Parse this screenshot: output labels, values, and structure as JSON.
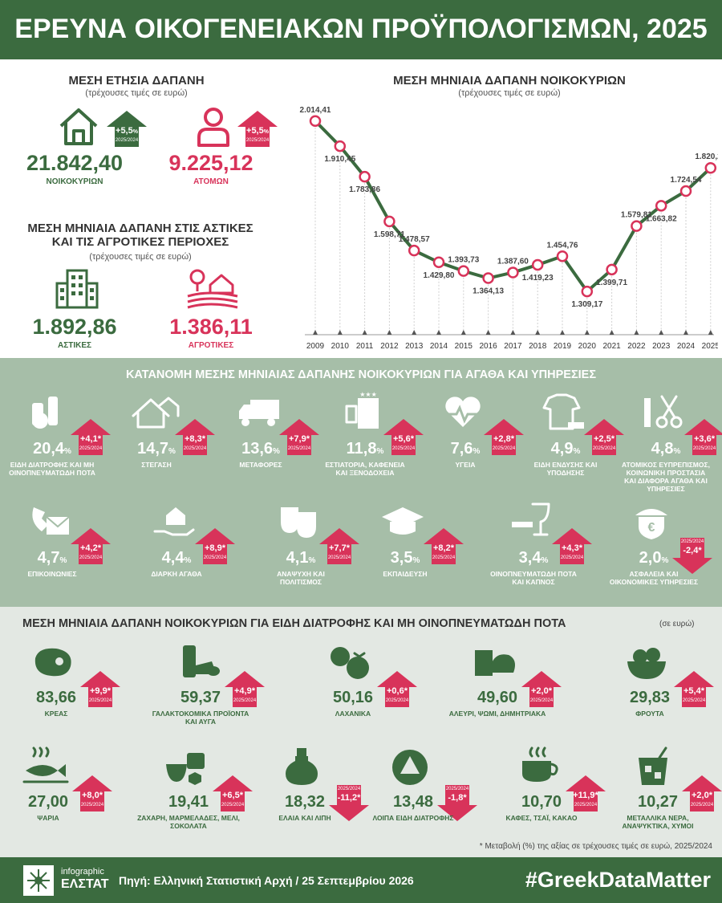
{
  "header": {
    "title": "ΕΡΕΥΝΑ ΟΙΚΟΓΕΝΕΙΑΚΩΝ ΠΡΟΫΠΟΛΟΓΙΣΜΩΝ, 2025"
  },
  "annual": {
    "title": "ΜΕΣΗ ΕΤΗΣΙΑ ΔΑΠΑΝΗ",
    "subtitle": "(τρέχουσες τιμές σε ευρώ)",
    "household": {
      "value": "21.842,40",
      "label": "ΝΟΙΚΟΚΥΡΙΩΝ",
      "change": "+5,5",
      "unit": "%",
      "period": "2025/2024"
    },
    "person": {
      "value": "9.225,12",
      "label": "ΑΤΟΜΩΝ",
      "change": "+5,5",
      "unit": "%",
      "period": "2025/2024"
    }
  },
  "areas": {
    "title1": "ΜΕΣΗ ΜΗΝΙΑΙΑ ΔΑΠΑΝΗ ΣΤΙΣ ΑΣΤΙΚΕΣ",
    "title2": "ΚΑΙ ΤΙΣ ΑΓΡΟΤΙΚΕΣ ΠΕΡΙΟΧΕΣ",
    "subtitle": "(τρέχουσες τιμές σε ευρώ)",
    "urban": {
      "value": "1.892,86",
      "label": "ΑΣΤΙΚΕΣ"
    },
    "rural": {
      "value": "1.386,11",
      "label": "ΑΓΡΟΤΙΚΕΣ"
    }
  },
  "chart_data": {
    "type": "line",
    "title": "ΜΕΣΗ ΜΗΝΙΑΙΑ ΔΑΠΑΝΗ ΝΟΙΚΟΚΥΡΙΩΝ",
    "subtitle": "(τρέχουσες τιμές σε ευρώ)",
    "x": [
      "2009",
      "2010",
      "2011",
      "2012",
      "2013",
      "2014",
      "2015",
      "2016",
      "2017",
      "2018",
      "2019",
      "2020",
      "2021",
      "2022",
      "2023",
      "2024",
      "2025"
    ],
    "values": [
      2014.41,
      1910.45,
      1783.86,
      1598.71,
      1478.57,
      1429.8,
      1393.73,
      1364.13,
      1387.6,
      1419.23,
      1454.76,
      1309.17,
      1399.71,
      1579.81,
      1663.82,
      1724.54,
      1820.2
    ],
    "labels": [
      "2.014,41",
      "1.910,45",
      "1.783,86",
      "1.598,71",
      "1.478,57",
      "1.429,80",
      "1.393,73",
      "1.364,13",
      "1.387,60",
      "1.419,23",
      "1.454,76",
      "1.309,17",
      "1.399,71",
      "1.579,81",
      "1.663,82",
      "1.724,54",
      "1.820,20"
    ],
    "label_pos": [
      "above",
      "below",
      "below",
      "below",
      "above",
      "below",
      "above",
      "below",
      "above",
      "below",
      "above",
      "below",
      "below",
      "above",
      "below",
      "above",
      "above"
    ],
    "ylim": [
      1150,
      2100
    ],
    "line_color": "#3b6b3f",
    "marker_color": "#d8335a"
  },
  "dist": {
    "title": "ΚΑΤΑΝΟΜΗ ΜΕΣΗΣ ΜΗΝΙΑΙΑΣ ΔΑΠΑΝΗΣ ΝΟΙΚΟΚΥΡΙΩΝ ΓΙΑ ΑΓΑΘΑ ΚΑΙ ΥΠΗΡΕΣΙΕΣ",
    "items": [
      {
        "icon": "groceries-icon",
        "value": "20,4",
        "unit": "%",
        "change": "+4,1*",
        "period": "2025/2024",
        "up": true,
        "label": "ΕΙΔΗ ΔΙΑΤΡΟΦΗΣ ΚΑΙ ΜΗ ΟΙΝΟΠΝΕΥΜΑΤΩΔΗ ΠΟΤΑ"
      },
      {
        "icon": "houses-icon",
        "value": "14,7",
        "unit": "%",
        "change": "+8,3*",
        "period": "2025/2024",
        "up": true,
        "label": "ΣΤΕΓΑΣΗ"
      },
      {
        "icon": "vehicles-icon",
        "value": "13,6",
        "unit": "%",
        "change": "+7,9*",
        "period": "2025/2024",
        "up": true,
        "label": "ΜΕΤΑΦΟΡΕΣ"
      },
      {
        "icon": "hotel-icon",
        "value": "11,8",
        "unit": "%",
        "change": "+5,6*",
        "period": "2025/2024",
        "up": true,
        "label": "ΕΣΤΙΑΤΟΡΙΑ, ΚΑΦΕΝΕΙΑ ΚΑΙ ΞΕΝΟΔΟΧΕΙΑ"
      },
      {
        "icon": "heart-pulse-icon",
        "value": "7,6",
        "unit": "%",
        "change": "+2,8*",
        "period": "2025/2024",
        "up": true,
        "label": "ΥΓΕΙΑ"
      },
      {
        "icon": "clothes-icon",
        "value": "4,9",
        "unit": "%",
        "change": "+2,5*",
        "period": "2025/2024",
        "up": true,
        "label": "ΕΙΔΗ ΕΝΔΥΣΗΣ ΚΑΙ ΥΠΟΔΗΣΗΣ"
      },
      {
        "icon": "scissors-comb-icon",
        "value": "4,8",
        "unit": "%",
        "change": "+3,6*",
        "period": "2025/2024",
        "up": true,
        "label": "ΑΤΟΜΙΚΟΣ ΕΥΠΡΕΠΙΣΜΟΣ, ΚΟΙΝΩΝΙΚΗ ΠΡΟΣΤΑΣΙΑ ΚΑΙ ΔΙΑΦΟΡΑ ΑΓΑΘΑ ΚΑΙ ΥΠΗΡΕΣΙΕΣ"
      },
      {
        "icon": "phone-mail-icon",
        "value": "4,7",
        "unit": "%",
        "change": "+4,2*",
        "period": "2025/2024",
        "up": true,
        "label": "ΕΠΙΚΟΙΝΩΝΙΕΣ"
      },
      {
        "icon": "hand-house-icon",
        "value": "4,4",
        "unit": "%",
        "change": "+8,9*",
        "period": "2025/2024",
        "up": true,
        "label": "ΔΙΑΡΚΗ ΑΓΑΘΑ"
      },
      {
        "icon": "theater-masks-icon",
        "value": "4,1",
        "unit": "%",
        "change": "+7,7*",
        "period": "2025/2024",
        "up": true,
        "label": "ΑΝΑΨΥΧΗ ΚΑΙ ΠΟΛΙΤΙΣΜΟΣ"
      },
      {
        "icon": "graduation-cap-icon",
        "value": "3,5",
        "unit": "%",
        "change": "+8,2*",
        "period": "2025/2024",
        "up": true,
        "label": "ΕΚΠΑΙΔΕΥΣΗ"
      },
      {
        "icon": "wine-cigarette-icon",
        "value": "3,4",
        "unit": "%",
        "change": "+4,3*",
        "period": "2025/2024",
        "up": true,
        "label": "ΟΙΝΟΠΝΕΥΜΑΤΩΔΗ ΠΟΤΑ ΚΑΙ ΚΑΠΝΟΣ"
      },
      {
        "icon": "euro-shield-icon",
        "value": "2,0",
        "unit": "%",
        "change": "-2,4*",
        "period": "2025/2024",
        "up": false,
        "label": "ΑΣΦΑΛΕΙΑ ΚΑΙ ΟΙΚΟΝΟΜΙΚΕΣ ΥΠΗΡΕΣΙΕΣ"
      }
    ]
  },
  "food": {
    "title": "ΜΕΣΗ ΜΗΝΙΑΙΑ ΔΑΠΑΝΗ ΝΟΙΚΟΚΥΡΙΩΝ ΓΙΑ ΕΙΔΗ ΔΙΑΤΡΟΦΗΣ ΚΑΙ ΜΗ ΟΙΝΟΠΝΕΥΜΑΤΩΔΗ ΠΟΤΑ",
    "unit_note": "(σε ευρώ)",
    "items": [
      {
        "icon": "meat-icon",
        "value": "83,66",
        "change": "+9,9*",
        "period": "2025/2024",
        "up": true,
        "label": "ΚΡΕΑΣ"
      },
      {
        "icon": "dairy-icon",
        "value": "59,37",
        "change": "+4,9*",
        "period": "2025/2024",
        "up": true,
        "label": "ΓΑΛΑΚΤΟΚΟΜΙΚΑ ΠΡΟΪΟΝΤΑ ΚΑΙ ΑΥΓΑ"
      },
      {
        "icon": "vegetables-icon",
        "value": "50,16",
        "change": "+0,6*",
        "period": "2025/2024",
        "up": true,
        "label": "ΛΑΧΑΝΙΚΑ"
      },
      {
        "icon": "bread-icon",
        "value": "49,60",
        "change": "+2,0*",
        "period": "2025/2024",
        "up": true,
        "label": "ΑΛΕΥΡΙ, ΨΩΜΙ, ΔΗΜΗΤΡΙΑΚΑ"
      },
      {
        "icon": "fruit-icon",
        "value": "29,83",
        "change": "+5,4*",
        "period": "2025/2024",
        "up": true,
        "label": "ΦΡΟΥΤΑ"
      },
      {
        "icon": "fish-icon",
        "value": "27,00",
        "change": "+8,0*",
        "period": "2025/2024",
        "up": true,
        "label": "ΨΑΡΙΑ"
      },
      {
        "icon": "sweets-icon",
        "value": "19,41",
        "change": "+6,5*",
        "period": "2025/2024",
        "up": true,
        "label": "ΖΑΧΑΡΗ, ΜΑΡΜΕΛΑΔΕΣ, ΜΕΛΙ, ΣΟΚΟΛΑΤΑ"
      },
      {
        "icon": "oil-bottle-icon",
        "value": "18,32",
        "change": "-11,2*",
        "period": "2025/2024",
        "up": false,
        "label": "ΕΛΑΙΑ ΚΑΙ ΛΙΠΗ"
      },
      {
        "icon": "other-food-icon",
        "value": "13,48",
        "change": "-1,8*",
        "period": "2025/2024",
        "up": false,
        "label": "ΛΟΙΠΑ ΕΙΔΗ ΔΙΑΤΡΟΦΗΣ"
      },
      {
        "icon": "coffee-cup-icon",
        "value": "10,70",
        "change": "+11,9*",
        "period": "2025/2024",
        "up": true,
        "label": "ΚΑΦΕΣ, ΤΣΑΪ, ΚΑΚΑΟ"
      },
      {
        "icon": "soft-drink-icon",
        "value": "10,27",
        "change": "+2,0*",
        "period": "2025/2024",
        "up": true,
        "label": "ΜΕΤΑΛΛΙΚΑ ΝΕΡΑ, ΑΝΑΨΥΚΤΙΚΑ, ΧΥΜΟΙ"
      }
    ],
    "footnote": "* Μεταβολή (%) της αξίας σε τρέχουσες τιμές σε ευρώ, 2025/2024"
  },
  "footer": {
    "logo_top": "infographic",
    "logo_bottom": "ΕΛΣΤΑΤ",
    "source": "Πηγή: Ελληνική Στατιστική Αρχή / 25 Σεπτεμβρίου 2026",
    "hashtag": "#GreekDataMatter"
  }
}
